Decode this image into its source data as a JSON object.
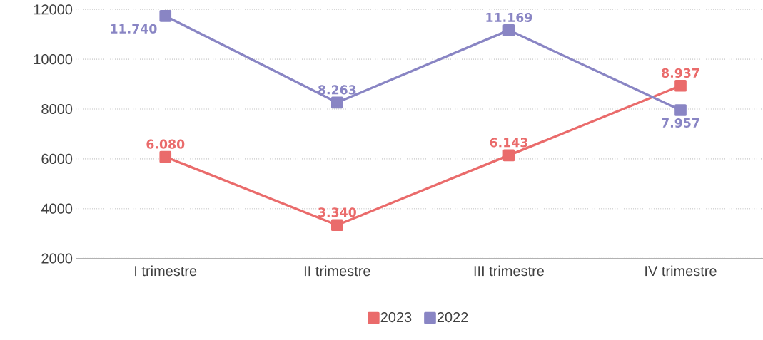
{
  "chart_data": {
    "type": "line",
    "categories": [
      "I trimestre",
      "II trimestre",
      "III trimestre",
      "IV trimestre"
    ],
    "series": [
      {
        "name": "2023",
        "color": "#ea6b6b",
        "values": [
          6080,
          3340,
          6143,
          8937
        ],
        "value_labels": [
          "6.080",
          "3.340",
          "6.143",
          "8.937"
        ]
      },
      {
        "name": "2022",
        "color": "#8985c4",
        "values": [
          11740,
          8263,
          11169,
          7957
        ],
        "value_labels": [
          "11.740",
          "8.263",
          "11.169",
          "7.957"
        ]
      }
    ],
    "ylim": [
      2000,
      12000
    ],
    "yticks": [
      2000,
      4000,
      6000,
      8000,
      10000,
      12000
    ],
    "grid": "y",
    "legend": "bottom",
    "marker": "square",
    "line_style": "solid"
  }
}
